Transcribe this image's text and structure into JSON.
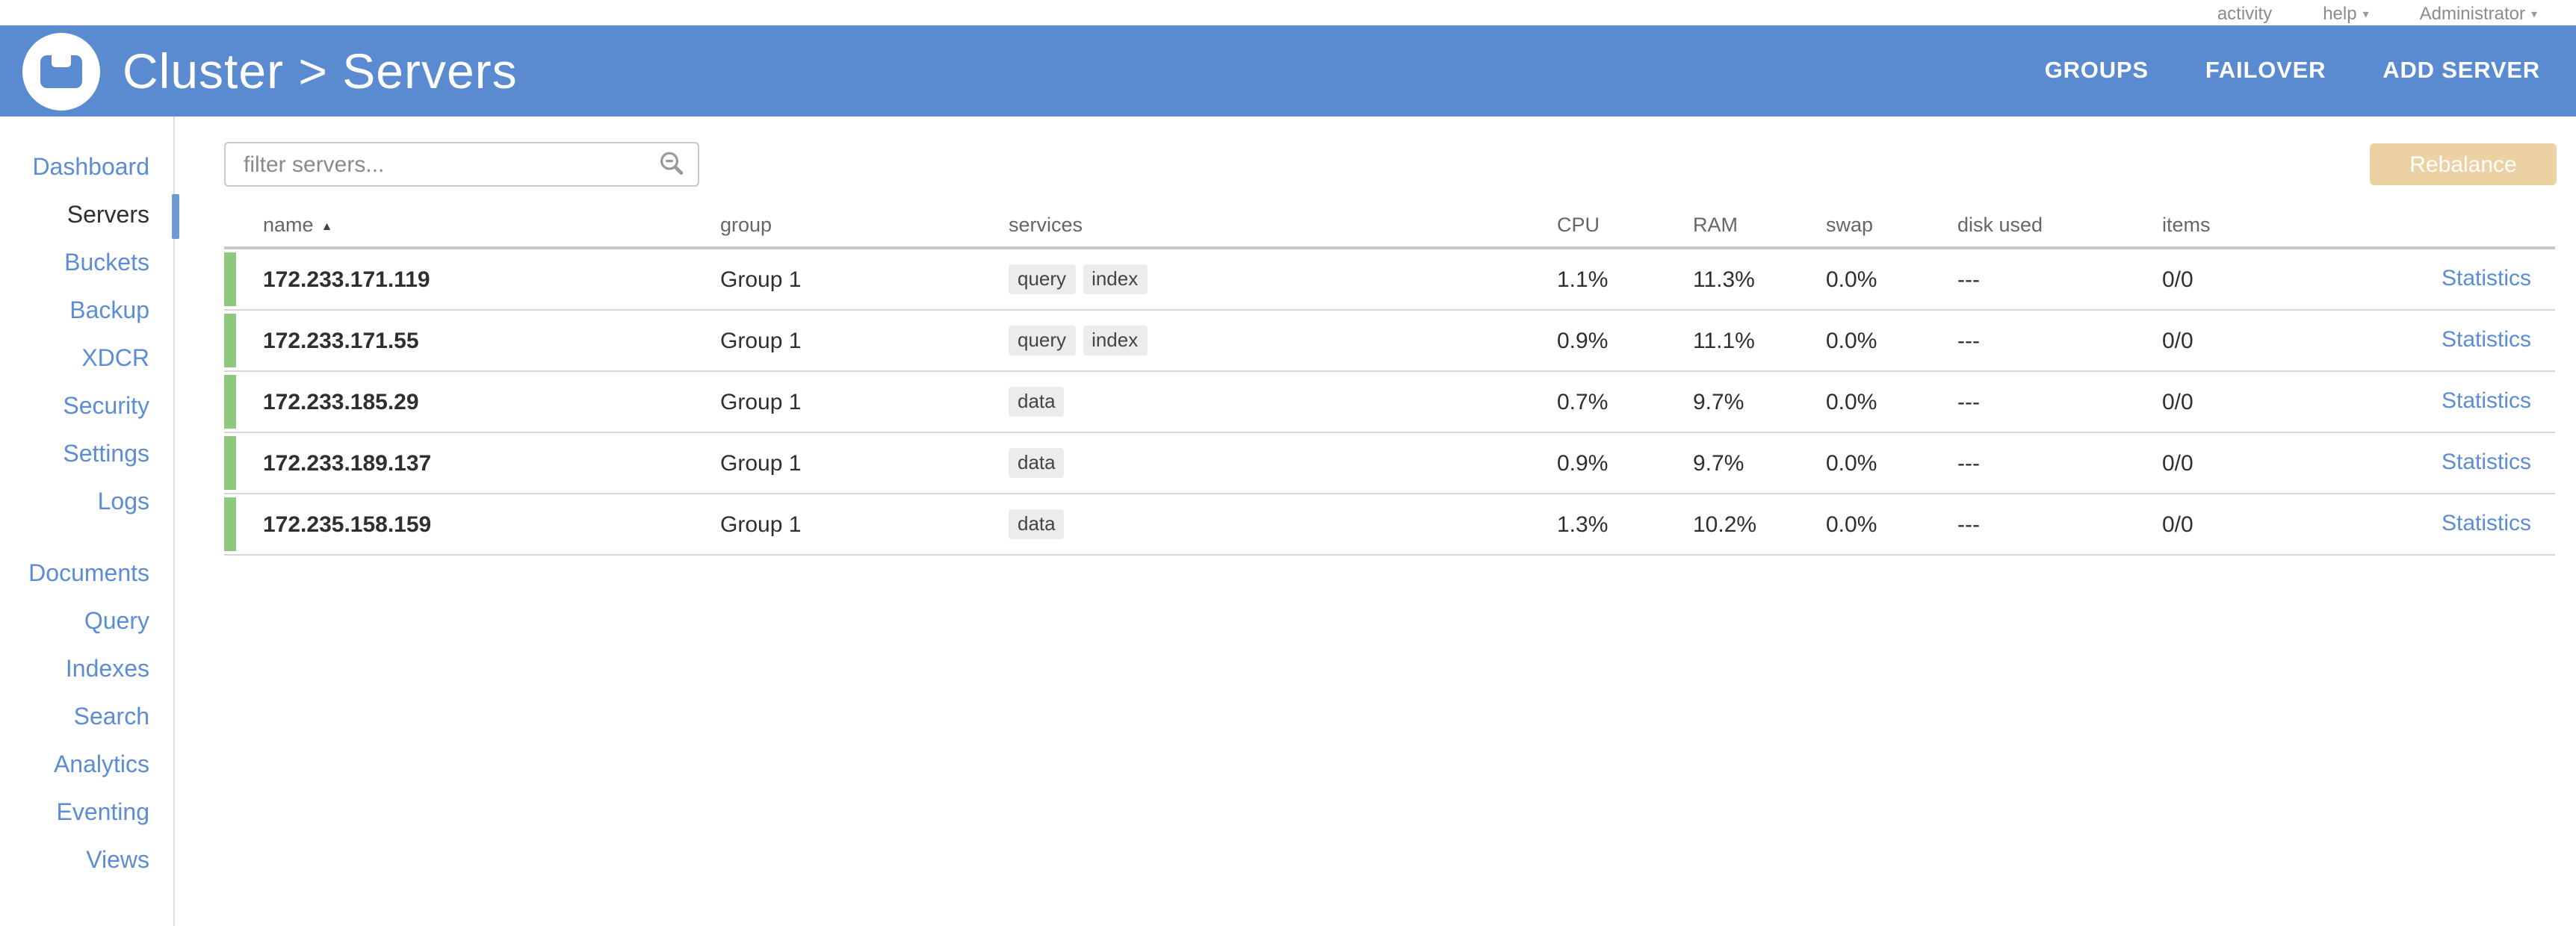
{
  "topbar": {
    "activity_label": "activity",
    "help_label": "help",
    "user_label": "Administrator"
  },
  "header": {
    "title": "Cluster > Servers",
    "nav": [
      "GROUPS",
      "FAILOVER",
      "ADD SERVER"
    ]
  },
  "sidebar": {
    "selected": "Servers",
    "groups": [
      [
        "Dashboard",
        "Servers",
        "Buckets",
        "Backup",
        "XDCR",
        "Security",
        "Settings",
        "Logs"
      ],
      [
        "Documents",
        "Query",
        "Indexes",
        "Search",
        "Analytics",
        "Eventing",
        "Views"
      ]
    ]
  },
  "toolbar": {
    "filter_placeholder": "filter servers...",
    "rebalance_label": "Rebalance"
  },
  "table": {
    "columns": [
      "name",
      "group",
      "services",
      "CPU",
      "RAM",
      "swap",
      "disk used",
      "items"
    ],
    "sort": {
      "column": "name",
      "direction": "asc"
    },
    "rows": [
      {
        "name": "172.233.171.119",
        "group": "Group 1",
        "services": [
          "query",
          "index"
        ],
        "cpu": "1.1%",
        "ram": "11.3%",
        "swap": "0.0%",
        "disk_used": "---",
        "items": "0/0",
        "statistics_label": "Statistics"
      },
      {
        "name": "172.233.171.55",
        "group": "Group 1",
        "services": [
          "query",
          "index"
        ],
        "cpu": "0.9%",
        "ram": "11.1%",
        "swap": "0.0%",
        "disk_used": "---",
        "items": "0/0",
        "statistics_label": "Statistics"
      },
      {
        "name": "172.233.185.29",
        "group": "Group 1",
        "services": [
          "data"
        ],
        "cpu": "0.7%",
        "ram": "9.7%",
        "swap": "0.0%",
        "disk_used": "---",
        "items": "0/0",
        "statistics_label": "Statistics"
      },
      {
        "name": "172.233.189.137",
        "group": "Group 1",
        "services": [
          "data"
        ],
        "cpu": "0.9%",
        "ram": "9.7%",
        "swap": "0.0%",
        "disk_used": "---",
        "items": "0/0",
        "statistics_label": "Statistics"
      },
      {
        "name": "172.235.158.159",
        "group": "Group 1",
        "services": [
          "data"
        ],
        "cpu": "1.3%",
        "ram": "10.2%",
        "swap": "0.0%",
        "disk_used": "---",
        "items": "0/0",
        "statistics_label": "Statistics"
      }
    ]
  },
  "icons": {
    "caret_down": "▾",
    "sort_asc": "▲",
    "search": "search-icon"
  },
  "colors": {
    "header_blue": "#5a8bd0",
    "link_blue": "#5b8cd4",
    "selected_bar_blue": "#6e99d2",
    "healthy_green": "#8dc87c",
    "rebalance_disabled": "#ecd2a2",
    "badge_bg": "#ececec",
    "row_border": "#d6d6d6"
  }
}
